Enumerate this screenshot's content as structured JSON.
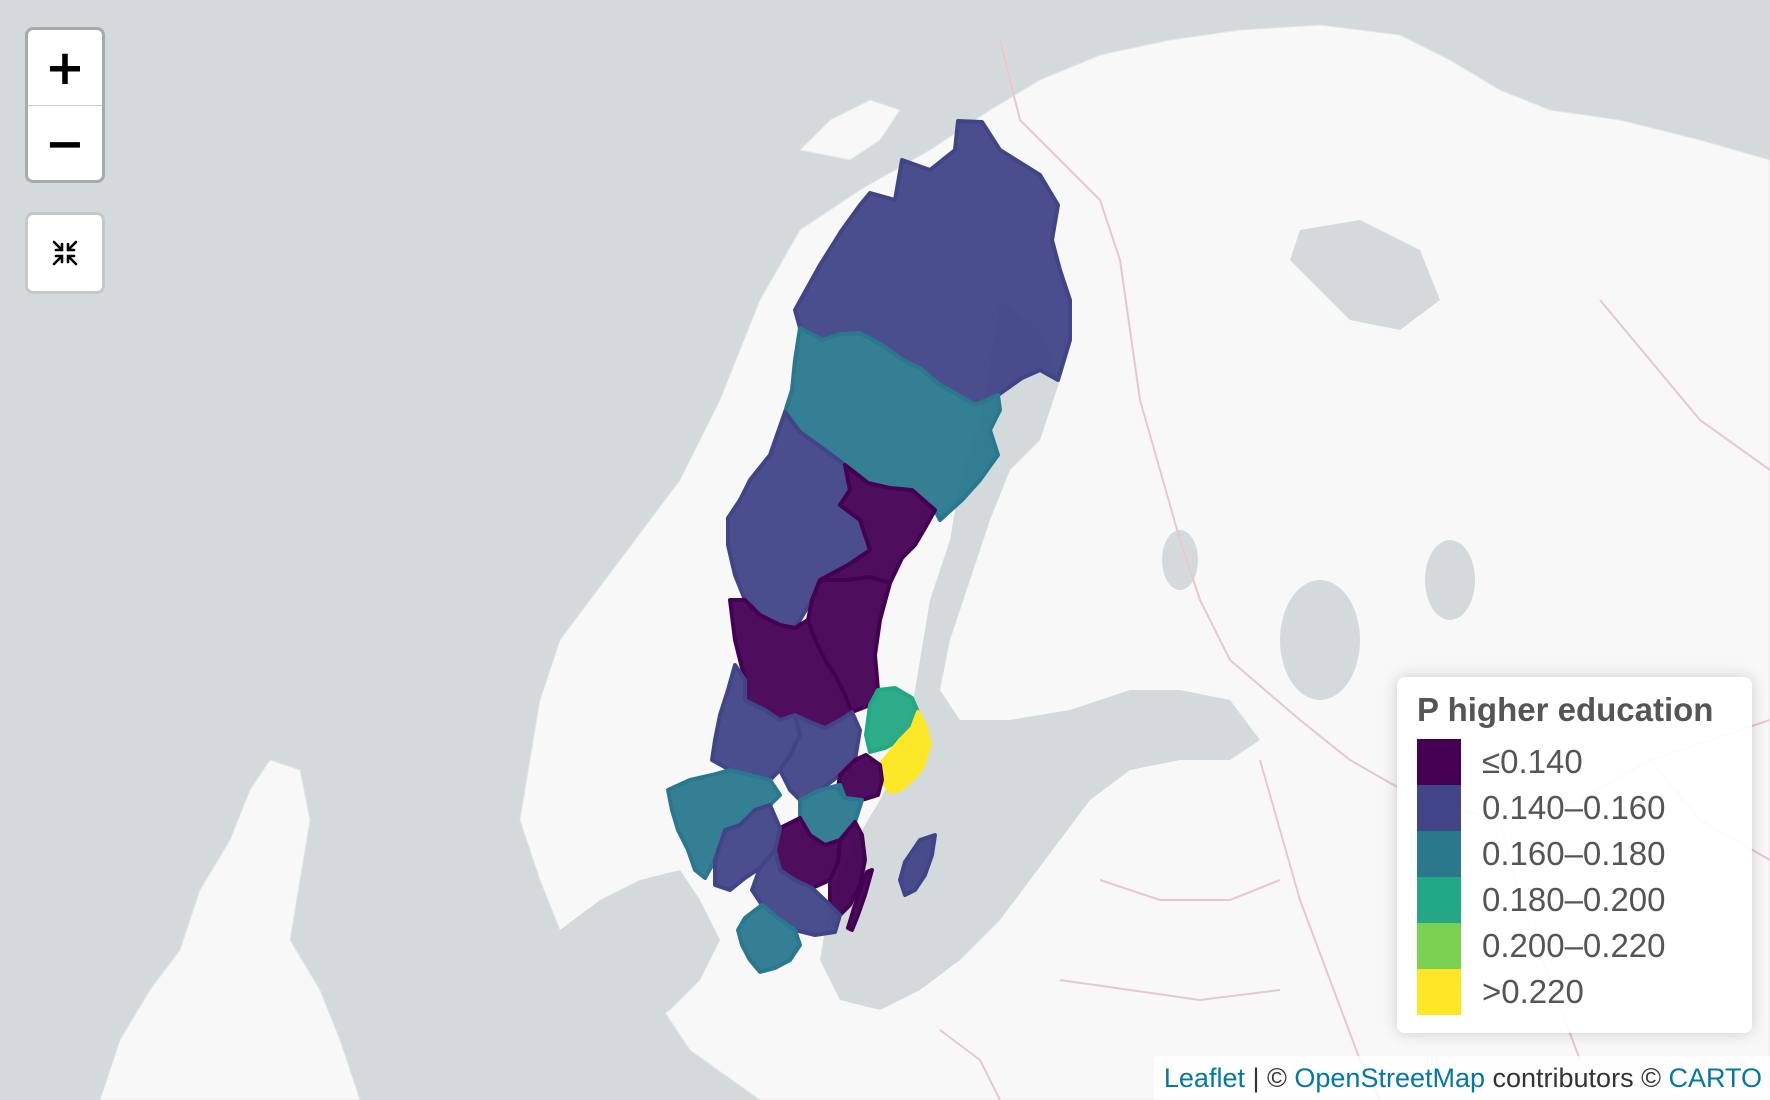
{
  "map": {
    "basemap": "CARTO light",
    "water_color": "#d4dadc",
    "land_color": "#f8f8f8",
    "border_color": "#e8c7cc"
  },
  "controls": {
    "zoom_in_label": "+",
    "zoom_out_label": "−",
    "reset_icon": "collapse-arrows-icon"
  },
  "legend": {
    "title": "P higher education",
    "items": [
      {
        "label": "≤0.140",
        "color": "#440154"
      },
      {
        "label": "0.140–0.160",
        "color": "#414487"
      },
      {
        "label": "0.160–0.180",
        "color": "#2a788e"
      },
      {
        "label": "0.180–0.200",
        "color": "#22a884"
      },
      {
        "label": "0.200–0.220",
        "color": "#7ad151"
      },
      {
        "label": ">0.220",
        "color": "#fde725"
      }
    ]
  },
  "regions": [
    {
      "class": "0.140–0.160",
      "color": "#414487"
    },
    {
      "class": "0.160–0.180",
      "color": "#2a788e"
    },
    {
      "class": "≤0.140",
      "color": "#440154"
    },
    {
      "class": "0.180–0.200",
      "color": "#22a884"
    },
    {
      "class": ">0.220",
      "color": "#fde725"
    }
  ],
  "attribution": {
    "leaflet": "Leaflet",
    "sep1": " | © ",
    "osm": "OpenStreetMap",
    "mid": " contributors © ",
    "carto": "CARTO"
  }
}
